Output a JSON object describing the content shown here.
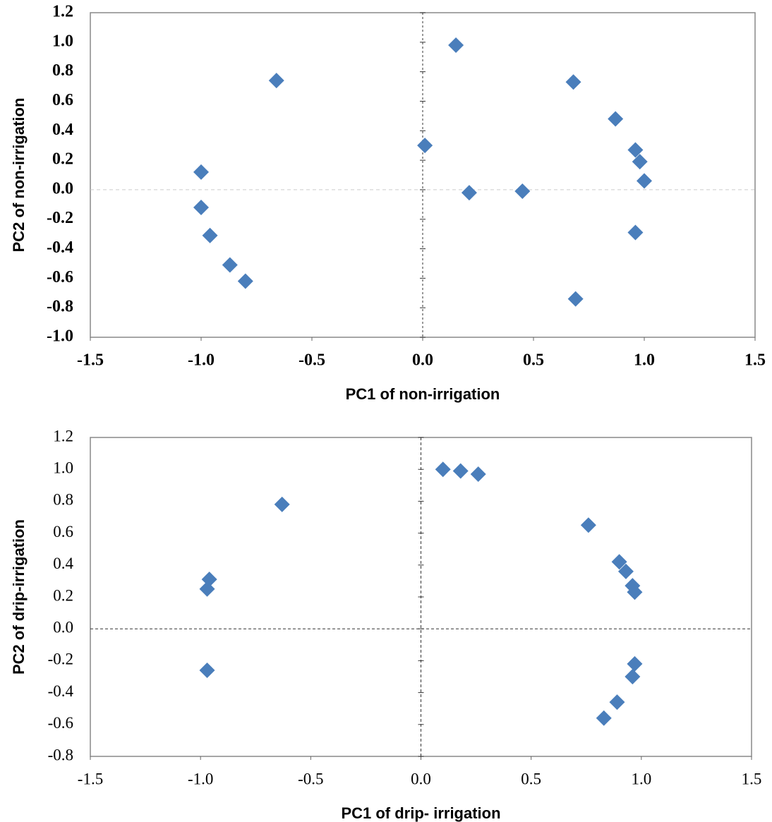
{
  "chart_data": [
    {
      "type": "scatter",
      "x_label": "PC1 of non-irrigation",
      "y_label": "PC2 of non-irrigation",
      "xlim": [
        -1.5,
        1.5
      ],
      "ylim": [
        -1.0,
        1.2
      ],
      "xticks": [
        -1.5,
        {
          "value": -1.0,
          "label": "-1.0"
        },
        -0.5,
        {
          "value": 0.0,
          "label": "0.0"
        },
        0.5,
        {
          "value": 1.0,
          "label": "1.0"
        },
        1.5
      ],
      "yticks": [
        {
          "value": -1.0,
          "label": "-1.0"
        },
        -0.8,
        -0.6,
        -0.4,
        -0.2,
        {
          "value": 0.0,
          "label": "0.0"
        },
        0.2,
        0.4,
        0.6,
        0.8,
        {
          "value": 1.0,
          "label": "1.0"
        },
        1.2
      ],
      "grid": false,
      "color": "#4a7ebb",
      "x": [
        -0.66,
        0.15,
        0.68,
        0.87,
        0.01,
        0.96,
        0.98,
        1.0,
        0.21,
        0.45,
        0.96,
        0.69,
        -1.0,
        -1.0,
        -0.96,
        -0.87,
        -0.8
      ],
      "y": [
        0.74,
        0.98,
        0.73,
        0.48,
        0.3,
        0.27,
        0.19,
        0.06,
        -0.02,
        -0.01,
        -0.29,
        -0.74,
        0.12,
        -0.12,
        -0.31,
        -0.51,
        -0.62
      ]
    },
    {
      "type": "scatter",
      "x_label": "PC1 of drip- irrigation",
      "y_label": "PC2 of drip-irrigation",
      "xlim": [
        -1.5,
        1.5
      ],
      "ylim": [
        -0.8,
        1.2
      ],
      "xticks": [
        -1.5,
        {
          "value": -1.0,
          "label": "-1.0"
        },
        -0.5,
        {
          "value": 0.0,
          "label": "0.0"
        },
        0.5,
        {
          "value": 1.0,
          "label": "1.0"
        },
        1.5
      ],
      "yticks": [
        -0.8,
        -0.6,
        -0.4,
        -0.2,
        {
          "value": 0.0,
          "label": "0.0"
        },
        0.2,
        0.4,
        0.6,
        0.8,
        {
          "value": 1.0,
          "label": "1.0"
        },
        1.2
      ],
      "grid": false,
      "color": "#4a7ebb",
      "x": [
        0.1,
        0.18,
        0.26,
        -0.63,
        0.76,
        0.9,
        0.93,
        0.96,
        0.97,
        -0.96,
        -0.97,
        -0.97,
        0.97,
        0.96,
        0.89,
        0.83
      ],
      "y": [
        1.0,
        0.99,
        0.97,
        0.78,
        0.65,
        0.42,
        0.36,
        0.27,
        0.23,
        0.31,
        0.25,
        -0.26,
        -0.22,
        -0.3,
        -0.46,
        -0.56
      ]
    }
  ]
}
